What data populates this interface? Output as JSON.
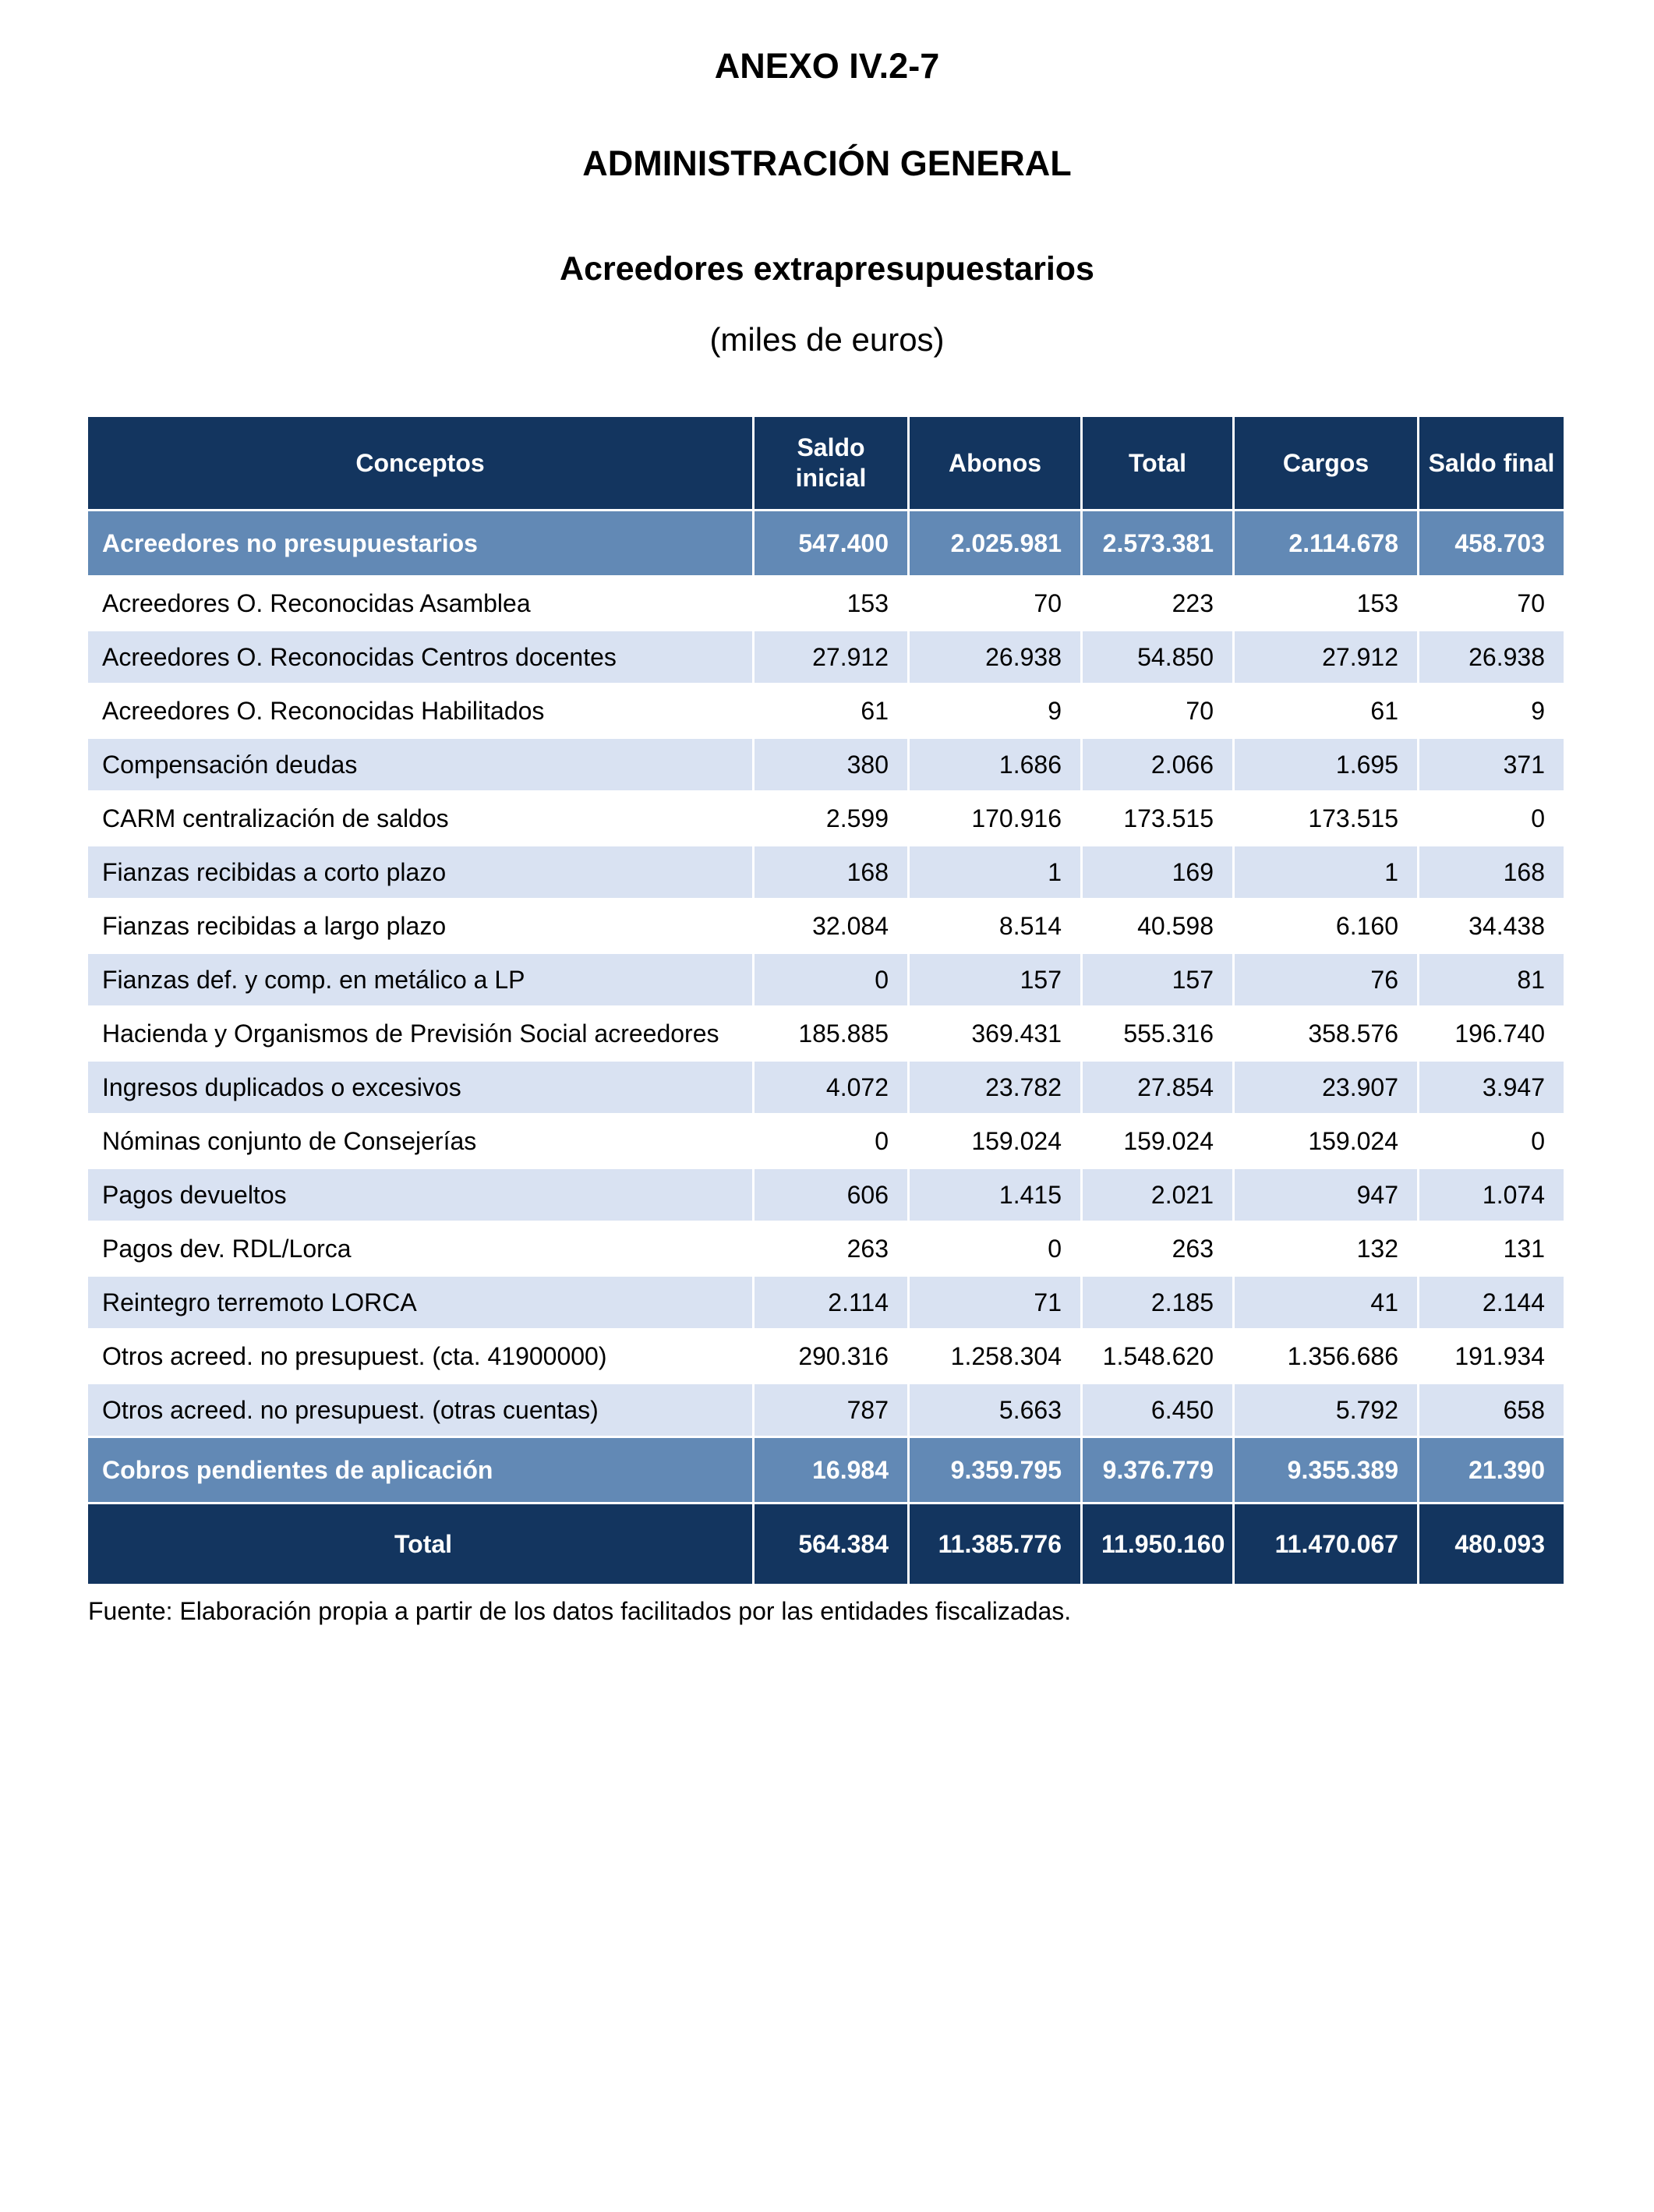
{
  "page": {
    "heading1": "ANEXO IV.2-7",
    "heading2": "ADMINISTRACIÓN GENERAL",
    "heading3": "Acreedores extrapresupuestarios",
    "units_note": "(miles de euros)",
    "source_note": "Fuente: Elaboración propia a partir de los datos facilitados por las entidades fiscalizadas."
  },
  "colors": {
    "header_navy": "#13355F",
    "band_blue": "#6289B5",
    "stripe_blue": "#D9E2F2",
    "grid_white": "#FFFFFF"
  },
  "table": {
    "columns": [
      "Conceptos",
      "Saldo inicial",
      "Abonos",
      "Total",
      "Cargos",
      "Saldo final"
    ],
    "rows": [
      {
        "style": "band",
        "label": "Acreedores no presupuestarios",
        "values": [
          "547.400",
          "2.025.981",
          "2.573.381",
          "2.114.678",
          "458.703"
        ]
      },
      {
        "style": "plain",
        "label": "Acreedores O. Reconocidas Asamblea",
        "values": [
          "153",
          "70",
          "223",
          "153",
          "70"
        ]
      },
      {
        "style": "stripe",
        "label": "Acreedores O. Reconocidas Centros docentes",
        "values": [
          "27.912",
          "26.938",
          "54.850",
          "27.912",
          "26.938"
        ]
      },
      {
        "style": "plain",
        "label": "Acreedores O. Reconocidas Habilitados",
        "values": [
          "61",
          "9",
          "70",
          "61",
          "9"
        ]
      },
      {
        "style": "stripe",
        "label": "Compensación deudas",
        "values": [
          "380",
          "1.686",
          "2.066",
          "1.695",
          "371"
        ]
      },
      {
        "style": "plain",
        "label": "CARM centralización de saldos",
        "values": [
          "2.599",
          "170.916",
          "173.515",
          "173.515",
          "0"
        ]
      },
      {
        "style": "stripe",
        "label": "Fianzas recibidas a corto plazo",
        "values": [
          "168",
          "1",
          "169",
          "1",
          "168"
        ]
      },
      {
        "style": "plain",
        "label": "Fianzas recibidas a largo plazo",
        "values": [
          "32.084",
          "8.514",
          "40.598",
          "6.160",
          "34.438"
        ]
      },
      {
        "style": "stripe",
        "label": "Fianzas def. y comp. en metálico a LP",
        "values": [
          "0",
          "157",
          "157",
          "76",
          "81"
        ]
      },
      {
        "style": "plain",
        "label": "Hacienda y Organismos de Previsión Social acreedores",
        "values": [
          "185.885",
          "369.431",
          "555.316",
          "358.576",
          "196.740"
        ]
      },
      {
        "style": "stripe",
        "label": "Ingresos duplicados o excesivos",
        "values": [
          "4.072",
          "23.782",
          "27.854",
          "23.907",
          "3.947"
        ]
      },
      {
        "style": "plain",
        "label": "Nóminas conjunto de Consejerías",
        "values": [
          "0",
          "159.024",
          "159.024",
          "159.024",
          "0"
        ]
      },
      {
        "style": "stripe",
        "label": "Pagos devueltos",
        "values": [
          "606",
          "1.415",
          "2.021",
          "947",
          "1.074"
        ]
      },
      {
        "style": "plain",
        "label": "Pagos dev. RDL/Lorca",
        "values": [
          "263",
          "0",
          "263",
          "132",
          "131"
        ]
      },
      {
        "style": "stripe",
        "label": "Reintegro terremoto LORCA",
        "values": [
          "2.114",
          "71",
          "2.185",
          "41",
          "2.144"
        ]
      },
      {
        "style": "plain",
        "label": "Otros acreed. no presupuest. (cta. 41900000)",
        "values": [
          "290.316",
          "1.258.304",
          "1.548.620",
          "1.356.686",
          "191.934"
        ]
      },
      {
        "style": "stripe",
        "label": "Otros acreed. no presupuest. (otras cuentas)",
        "values": [
          "787",
          "5.663",
          "6.450",
          "5.792",
          "658"
        ]
      },
      {
        "style": "band",
        "label": "Cobros pendientes de aplicación",
        "values": [
          "16.984",
          "9.359.795",
          "9.376.779",
          "9.355.389",
          "21.390"
        ]
      },
      {
        "style": "total",
        "label": "Total",
        "values": [
          "564.384",
          "11.385.776",
          "11.950.160",
          "11.470.067",
          "480.093"
        ]
      }
    ]
  }
}
